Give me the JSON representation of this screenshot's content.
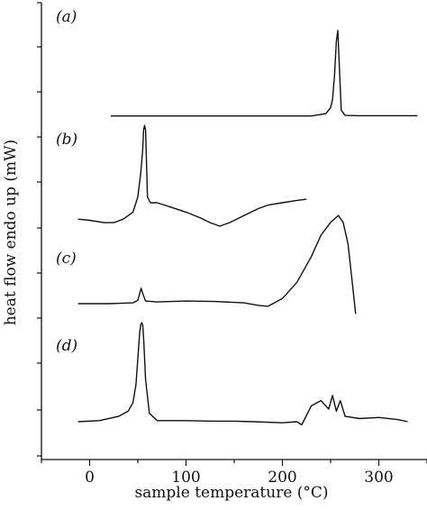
{
  "chart_data": {
    "type": "line",
    "xlabel": "sample temperature (°C)",
    "ylabel": "heat flow endo up (mW)",
    "xlim": [
      -50,
      350
    ],
    "x_ticks": [
      0,
      100,
      200,
      300
    ],
    "y_tick_labels_shown": false,
    "grid": false,
    "panels": [
      {
        "label": "(a)",
        "x": [
          22,
          60,
          100,
          150,
          200,
          230,
          245,
          250,
          252,
          254,
          256,
          257.5,
          259,
          261,
          265,
          280,
          320,
          340
        ],
        "y": [
          0.1,
          0.1,
          0.1,
          0.1,
          0.1,
          0.1,
          0.3,
          0.8,
          1.5,
          3.5,
          6.5,
          7.4,
          4.5,
          0.6,
          0.15,
          0.12,
          0.12,
          0.12
        ]
      },
      {
        "label": "(b)",
        "x": [
          -12,
          0,
          15,
          25,
          35,
          45,
          50,
          53,
          55,
          56,
          57,
          58,
          59,
          60,
          63,
          70,
          85,
          100,
          115,
          125,
          135,
          145,
          160,
          175,
          185,
          200,
          215,
          225
        ],
        "y": [
          0.6,
          0.5,
          0.3,
          0.3,
          0.6,
          1.2,
          2.5,
          4.5,
          6.5,
          8.2,
          8.6,
          8.2,
          5.5,
          2.5,
          2.0,
          2.0,
          1.6,
          1.2,
          0.7,
          0.3,
          0.0,
          0.3,
          0.9,
          1.5,
          1.8,
          2.0,
          2.2,
          2.3
        ]
      },
      {
        "label": "(c)",
        "x": [
          -12,
          20,
          45,
          50,
          52,
          53.5,
          55,
          58,
          70,
          100,
          130,
          160,
          175,
          185,
          200,
          215,
          230,
          240,
          250,
          258,
          263,
          268,
          272,
          276
        ],
        "y": [
          0.0,
          0.0,
          0.1,
          0.4,
          1.2,
          1.8,
          1.2,
          0.3,
          0.2,
          0.3,
          0.25,
          0.1,
          -0.2,
          -0.3,
          0.6,
          2.5,
          5.5,
          8.0,
          9.5,
          10.3,
          9.5,
          7.0,
          3.0,
          -1.2
        ]
      },
      {
        "label": "(d)",
        "x": [
          -12,
          10,
          30,
          40,
          45,
          48,
          50,
          52,
          53,
          54,
          55,
          56,
          58,
          62,
          70,
          80,
          100,
          130,
          150,
          170,
          200,
          215,
          220,
          230,
          240,
          248,
          252,
          256,
          260,
          265,
          280,
          300,
          320,
          330
        ],
        "y": [
          0.0,
          0.1,
          0.5,
          1.0,
          1.8,
          3.5,
          6.0,
          8.5,
          9.2,
          9.4,
          9.2,
          8.0,
          4.0,
          0.8,
          0.1,
          0.1,
          0.1,
          0.05,
          0.05,
          0.0,
          -0.1,
          0.0,
          -0.3,
          1.5,
          2.0,
          1.2,
          2.5,
          1.0,
          2.0,
          0.5,
          0.3,
          0.4,
          0.2,
          0.0
        ]
      }
    ]
  }
}
